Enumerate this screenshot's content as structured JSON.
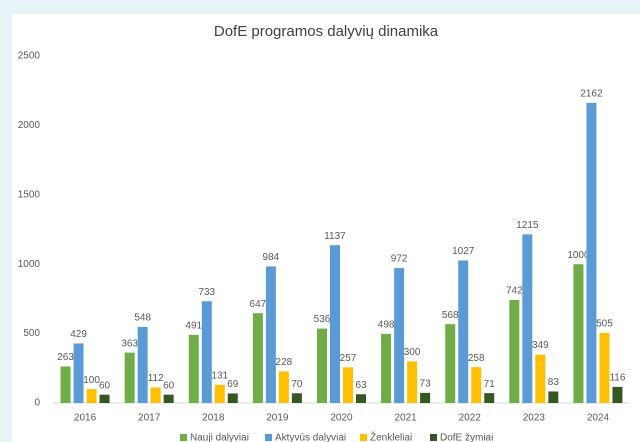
{
  "chart_data": {
    "type": "bar",
    "title": "DofE programos dalyvių dinamika",
    "categories": [
      "2016",
      "2017",
      "2018",
      "2019",
      "2020",
      "2021",
      "2022",
      "2023",
      "2024"
    ],
    "series": [
      {
        "name": "Nauji dalyviai",
        "color": "#70ad47",
        "values": [
          263,
          363,
          491,
          647,
          536,
          498,
          568,
          742,
          1000
        ]
      },
      {
        "name": "Aktyvūs dalyviai",
        "color": "#5b9bd5",
        "values": [
          429,
          548,
          733,
          984,
          1137,
          972,
          1027,
          1215,
          2162
        ]
      },
      {
        "name": "Ženkleliai",
        "color": "#ffc000",
        "values": [
          100,
          112,
          131,
          228,
          257,
          300,
          258,
          349,
          505
        ]
      },
      {
        "name": "DofE žymiai",
        "color": "#375623",
        "values": [
          60,
          60,
          69,
          70,
          63,
          73,
          71,
          83,
          116
        ]
      }
    ],
    "ylim": [
      0,
      2500
    ],
    "yticks": [
      0,
      500,
      1000,
      1500,
      2000,
      2500
    ],
    "grid": false,
    "legend": "bottom"
  }
}
